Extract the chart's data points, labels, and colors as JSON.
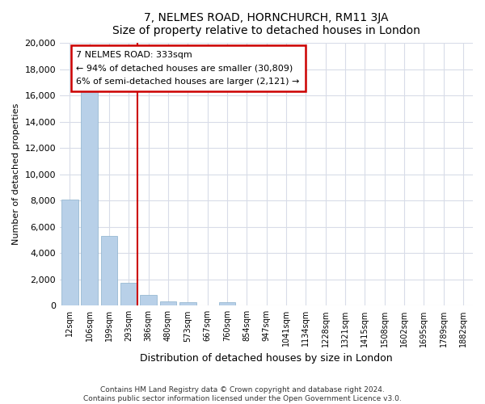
{
  "title": "7, NELMES ROAD, HORNCHURCH, RM11 3JA",
  "subtitle": "Size of property relative to detached houses in London",
  "xlabel": "Distribution of detached houses by size in London",
  "ylabel": "Number of detached properties",
  "categories": [
    "12sqm",
    "106sqm",
    "199sqm",
    "293sqm",
    "386sqm",
    "480sqm",
    "573sqm",
    "667sqm",
    "760sqm",
    "854sqm",
    "947sqm",
    "1041sqm",
    "1134sqm",
    "1228sqm",
    "1321sqm",
    "1415sqm",
    "1508sqm",
    "1602sqm",
    "1695sqm",
    "1789sqm",
    "1882sqm"
  ],
  "values": [
    8100,
    16500,
    5300,
    1750,
    800,
    300,
    250,
    0,
    250,
    0,
    0,
    0,
    0,
    0,
    0,
    0,
    0,
    0,
    0,
    0,
    0
  ],
  "bar_color": "#b8d0e8",
  "bar_edge_color": "#8ab0cc",
  "vline_color": "#cc0000",
  "annotation_title": "7 NELMES ROAD: 333sqm",
  "annotation_line1": "← 94% of detached houses are smaller (30,809)",
  "annotation_line2": "6% of semi-detached houses are larger (2,121) →",
  "annotation_box_color": "#ffffff",
  "annotation_box_edge_color": "#cc0000",
  "ylim": [
    0,
    20000
  ],
  "yticks": [
    0,
    2000,
    4000,
    6000,
    8000,
    10000,
    12000,
    14000,
    16000,
    18000,
    20000
  ],
  "footer_line1": "Contains HM Land Registry data © Crown copyright and database right 2024.",
  "footer_line2": "Contains public sector information licensed under the Open Government Licence v3.0.",
  "bg_color": "#ffffff",
  "plot_bg_color": "#ffffff",
  "grid_color": "#d8dce8"
}
